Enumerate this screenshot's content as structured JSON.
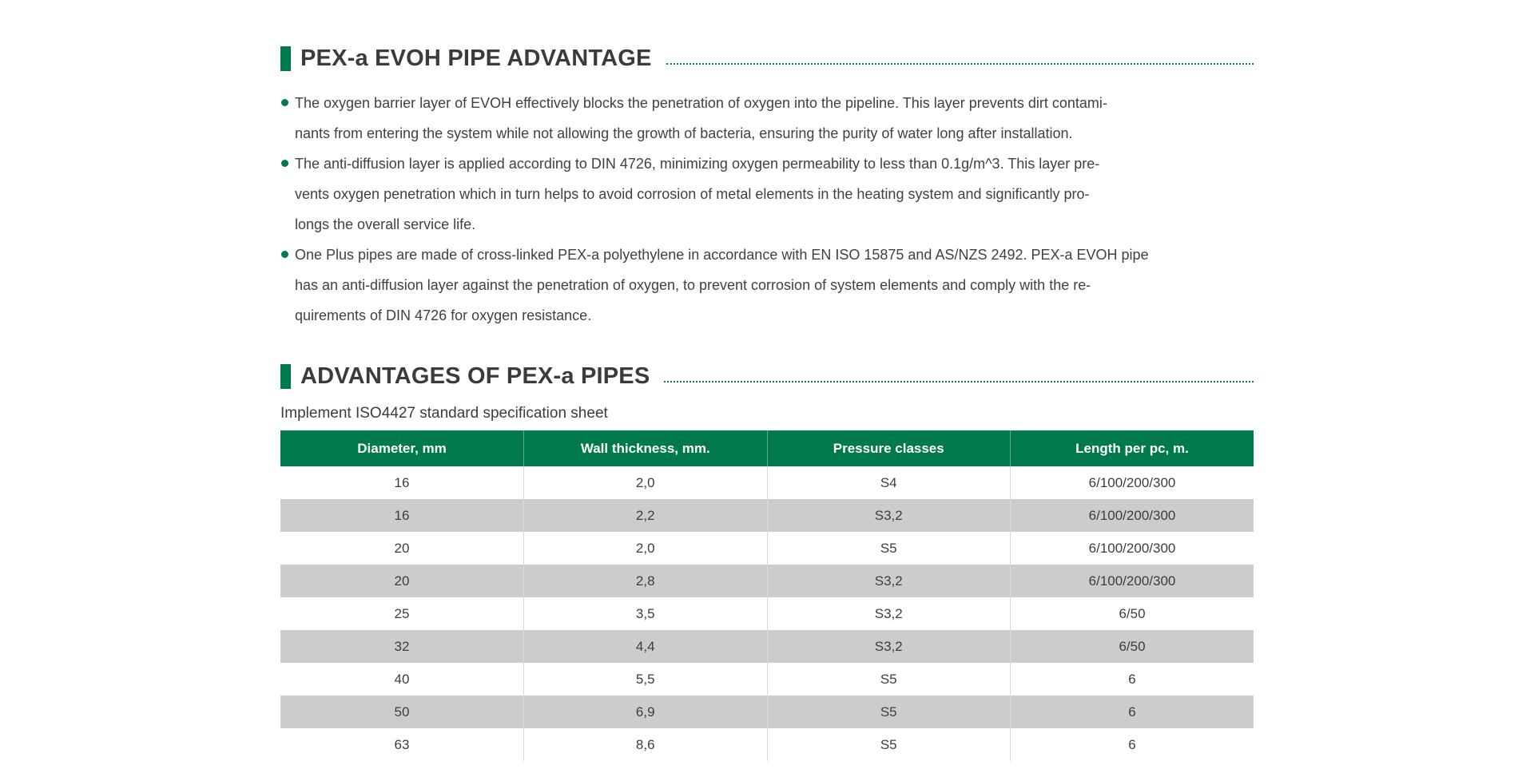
{
  "colors": {
    "accent_green": "#007a4c",
    "row_alt_gray": "#cccccc",
    "heading_text": "#3b3b3b",
    "body_text": "#414141"
  },
  "section1": {
    "title": "PEX-a EVOH PIPE ADVANTAGE",
    "bullets": [
      {
        "text": "The oxygen barrier layer of EVOH effectively blocks the penetration of oxygen into the pipeline. This layer prevents dirt contami-\nnants from entering the system while not allowing the growth of bacteria, ensuring the purity of water long after installation."
      },
      {
        "text": "The anti-diffusion layer is applied according to DIN 4726, minimizing oxygen permeability to less than 0.1g/m^3. This layer pre-\nvents oxygen penetration which in turn helps to avoid corrosion of metal elements in the heating system and significantly pro-\nlongs the overall service life."
      },
      {
        "text": "One Plus pipes are made of cross-linked PEX-a polyethylene in accordance with EN ISO 15875 and AS/NZS 2492. PEX-a EVOH pipe\nhas an anti-diffusion layer against the penetration of oxygen, to prevent corrosion of system elements and comply with the re-\nquirements of DIN 4726 for oxygen resistance."
      }
    ]
  },
  "section2": {
    "title": "ADVANTAGES OF PEX-a PIPES",
    "subtitle": "Implement ISO4427 standard specification sheet",
    "table": {
      "headers": [
        "Diameter, mm",
        "Wall thickness, mm.",
        "Pressure classes",
        "Length per pc, m."
      ],
      "rows": [
        [
          "16",
          "2,0",
          "S4",
          "6/100/200/300"
        ],
        [
          "16",
          "2,2",
          "S3,2",
          "6/100/200/300"
        ],
        [
          "20",
          "2,0",
          "S5",
          "6/100/200/300"
        ],
        [
          "20",
          "2,8",
          "S3,2",
          "6/100/200/300"
        ],
        [
          "25",
          "3,5",
          "S3,2",
          "6/50"
        ],
        [
          "32",
          "4,4",
          "S3,2",
          "6/50"
        ],
        [
          "40",
          "5,5",
          "S5",
          "6"
        ],
        [
          "50",
          "6,9",
          "S5",
          "6"
        ],
        [
          "63",
          "8,6",
          "S5",
          "6"
        ]
      ]
    }
  }
}
